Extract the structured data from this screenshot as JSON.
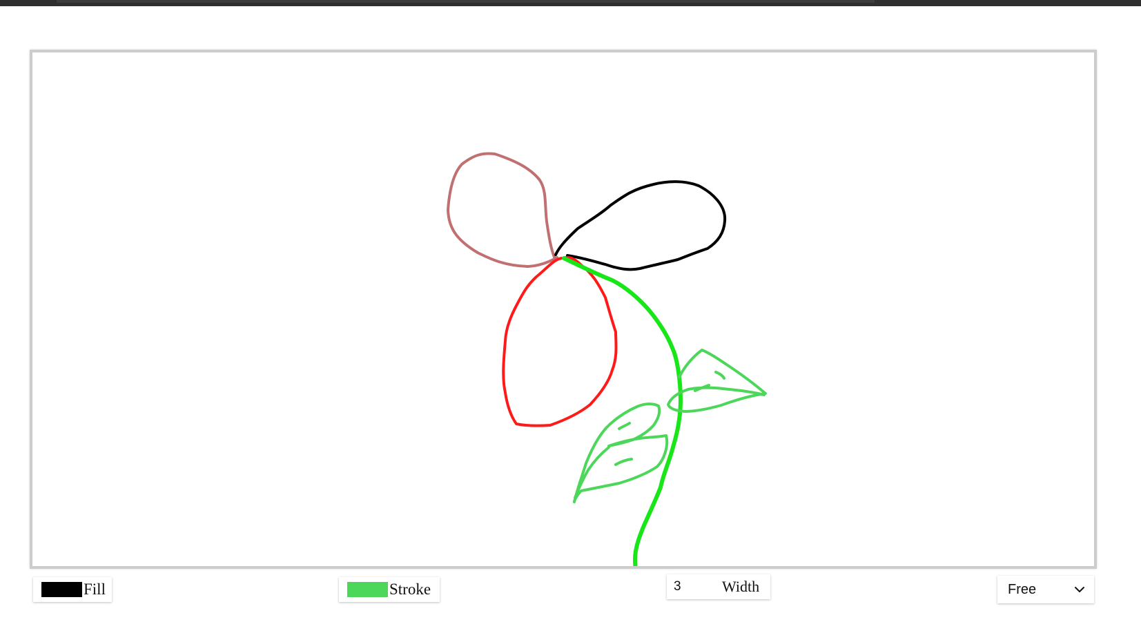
{
  "fill": {
    "label": "Fill",
    "color": "#000000"
  },
  "stroke": {
    "label": "Stroke",
    "color": "#4cd65a"
  },
  "width": {
    "value": "3",
    "label": "Width"
  },
  "mode": {
    "selected": "Free"
  },
  "drawing": {
    "strokes": [
      {
        "name": "petal-pink",
        "color": "#c07070"
      },
      {
        "name": "petal-black",
        "color": "#000000"
      },
      {
        "name": "petal-red",
        "color": "#ff1a1a"
      },
      {
        "name": "stem",
        "color": "#19e619"
      },
      {
        "name": "leaf-right",
        "color": "#4cd65a"
      },
      {
        "name": "leaf-left",
        "color": "#4cd65a"
      },
      {
        "name": "leaf-left-inner",
        "color": "#4cd65a"
      }
    ]
  }
}
